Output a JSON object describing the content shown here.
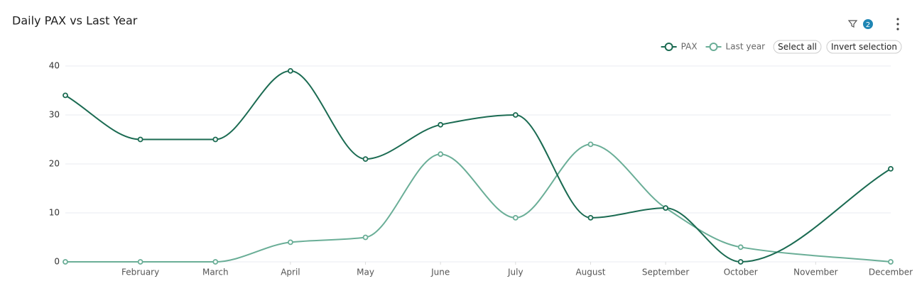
{
  "chart_data": {
    "type": "line",
    "title": "Daily PAX vs Last Year",
    "filter_count": 2,
    "buttons": [
      "Select all",
      "Invert selection"
    ],
    "x": [
      0,
      1,
      2,
      3,
      4,
      5,
      6,
      7,
      8,
      9,
      11
    ],
    "xlim": [
      0,
      11
    ],
    "xticks": [
      {
        "value": 1,
        "label": "February"
      },
      {
        "value": 2,
        "label": "March"
      },
      {
        "value": 3,
        "label": "April"
      },
      {
        "value": 4,
        "label": "May"
      },
      {
        "value": 5,
        "label": "June"
      },
      {
        "value": 6,
        "label": "July"
      },
      {
        "value": 7,
        "label": "August"
      },
      {
        "value": 8,
        "label": "September"
      },
      {
        "value": 9,
        "label": "October"
      },
      {
        "value": 10,
        "label": "November"
      },
      {
        "value": 11,
        "label": "December"
      }
    ],
    "ylim": [
      0,
      40
    ],
    "yticks": [
      0,
      10,
      20,
      30,
      40
    ],
    "grid": true,
    "series": [
      {
        "name": "PAX",
        "color": "#1b6b52",
        "values": [
          34,
          25,
          25,
          39,
          21,
          28,
          30,
          9,
          11,
          0,
          19
        ]
      },
      {
        "name": "Last year",
        "color": "#6aae97",
        "values": [
          0,
          0,
          0,
          4,
          5,
          22,
          9,
          24,
          11,
          3,
          0
        ]
      }
    ]
  }
}
